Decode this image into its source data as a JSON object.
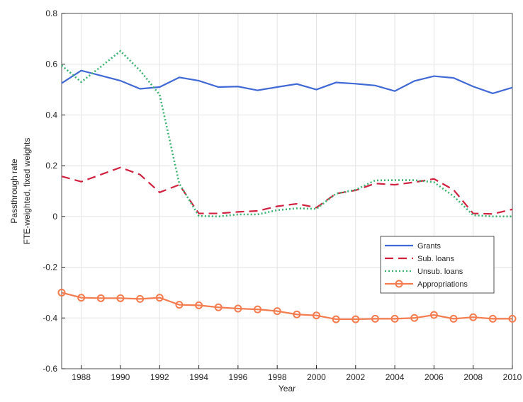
{
  "chart_data": {
    "type": "line",
    "xlabel": "Year",
    "ylabel": [
      "Passthrough rate",
      "FTE-weighted, fixed weights"
    ],
    "x": [
      1987,
      1988,
      1989,
      1990,
      1991,
      1992,
      1993,
      1994,
      1995,
      1996,
      1997,
      1998,
      1999,
      2000,
      2001,
      2002,
      2003,
      2004,
      2005,
      2006,
      2007,
      2008,
      2009,
      2010
    ],
    "xlim": [
      1987,
      2010
    ],
    "xticks": [
      1988,
      1990,
      1992,
      1994,
      1996,
      1998,
      2000,
      2002,
      2004,
      2006,
      2008,
      2010
    ],
    "ylim": [
      -0.6,
      0.8
    ],
    "yticks": [
      -0.6,
      -0.4,
      -0.2,
      0,
      0.2,
      0.4,
      0.6,
      0.8
    ],
    "grid": true,
    "legend": "east",
    "series": [
      {
        "name": "Grants",
        "color": "#4169d6",
        "style": "solid",
        "marker": false,
        "values": [
          0.525,
          0.575,
          0.555,
          0.535,
          0.503,
          0.51,
          0.548,
          0.535,
          0.51,
          0.512,
          0.497,
          0.51,
          0.522,
          0.5,
          0.528,
          0.523,
          0.516,
          0.494,
          0.534,
          0.553,
          0.546,
          0.512,
          0.485,
          0.508
        ]
      },
      {
        "name": "Sub. loans",
        "color": "#d0213f",
        "style": "dashed",
        "marker": false,
        "values": [
          0.158,
          0.137,
          0.165,
          0.193,
          0.165,
          0.095,
          0.125,
          0.012,
          0.012,
          0.018,
          0.022,
          0.04,
          0.05,
          0.035,
          0.09,
          0.103,
          0.13,
          0.125,
          0.135,
          0.148,
          0.105,
          0.012,
          0.01,
          0.028
        ]
      },
      {
        "name": "Unsub. loans",
        "color": "#3cb371",
        "style": "dotted",
        "marker": false,
        "values": [
          0.595,
          0.53,
          0.59,
          0.652,
          0.575,
          0.48,
          0.13,
          0.002,
          0.0,
          0.008,
          0.008,
          0.025,
          0.032,
          0.03,
          0.09,
          0.105,
          0.142,
          0.143,
          0.143,
          0.135,
          0.08,
          0.005,
          0.0,
          0.0
        ]
      },
      {
        "name": "Appropriations",
        "color": "#f47c4f",
        "style": "solid",
        "marker": true,
        "values": [
          -0.3,
          -0.32,
          -0.322,
          -0.322,
          -0.325,
          -0.32,
          -0.348,
          -0.35,
          -0.358,
          -0.363,
          -0.366,
          -0.373,
          -0.386,
          -0.39,
          -0.405,
          -0.405,
          -0.403,
          -0.403,
          -0.4,
          -0.388,
          -0.403,
          -0.397,
          -0.403,
          -0.403
        ]
      }
    ]
  }
}
